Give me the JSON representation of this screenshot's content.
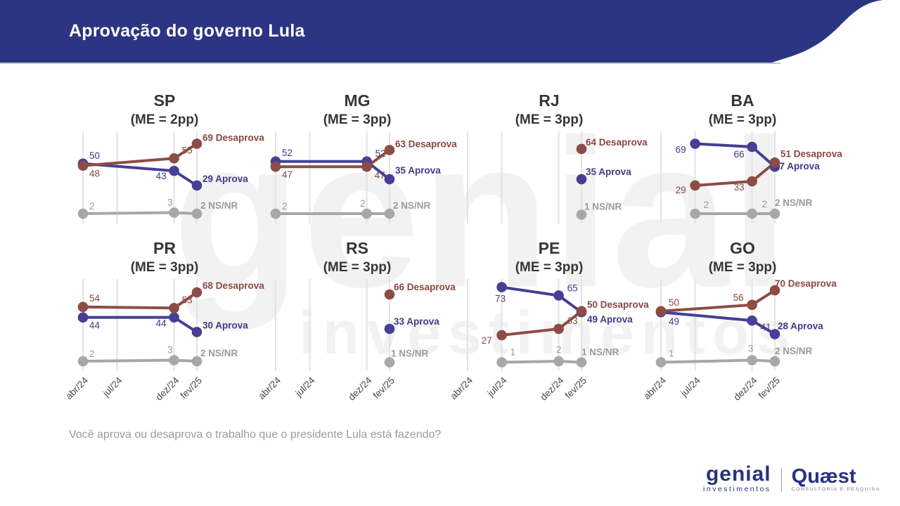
{
  "header": {
    "title": "Aprovação do governo Lula",
    "bg_color": "#2b3581"
  },
  "question": "Você aprova ou desaprova o trabalho que o presidente Lula está fazendo?",
  "watermark": {
    "line1": "genial",
    "line2": "investimentos"
  },
  "footer": {
    "genial": {
      "name": "genial",
      "sub": "investimentos"
    },
    "quaest": {
      "name": "Quæst",
      "sub": "CONSULTORIA E PESQUISA"
    }
  },
  "colors": {
    "aprova": "#463f95",
    "aprova_text": "#3d3a88",
    "desaprova": "#8d4c45",
    "desaprova_text": "#8a4740",
    "nsnr": "#a7a7a7",
    "nsnr_text": "#9a9a9a",
    "grid": "#e3e3e3",
    "tick": "#474747",
    "title": "#363636",
    "header_rule": "#c4c4c4"
  },
  "x_categories": [
    "abr/24",
    "jul/24",
    "dez/24",
    "fev/25"
  ],
  "chart_data": [
    {
      "state": "SP",
      "me": "(ME = 2pp)",
      "type": "line",
      "ylim": [
        0,
        80
      ],
      "series": [
        {
          "key": "nsnr",
          "name": "NS/NR",
          "points": [
            {
              "x": "abr/24",
              "v": 2,
              "dx": 9,
              "dy": -6,
              "anchor": "start",
              "end": false
            },
            {
              "x": "dez/24",
              "v": 3,
              "dx": -2,
              "dy": -10,
              "anchor": "end",
              "end": false
            },
            {
              "x": "fev/25",
              "v": 2,
              "dx": 5,
              "dy": -7,
              "anchor": "start",
              "end": true
            }
          ]
        },
        {
          "key": "aprova",
          "name": "Aprova",
          "points": [
            {
              "x": "abr/24",
              "v": 50,
              "dx": 9,
              "dy": -7,
              "anchor": "start",
              "end": false
            },
            {
              "x": "dez/24",
              "v": 43,
              "dx": -11,
              "dy": 12,
              "anchor": "end",
              "end": false
            },
            {
              "x": "fev/25",
              "v": 29,
              "dx": 8,
              "dy": -5,
              "anchor": "start",
              "end": true
            }
          ]
        },
        {
          "key": "desaprova",
          "name": "Desaprova",
          "points": [
            {
              "x": "abr/24",
              "v": 48,
              "dx": 9,
              "dy": 16,
              "anchor": "start",
              "end": false
            },
            {
              "x": "dez/24",
              "v": 55,
              "dx": 11,
              "dy": -7,
              "anchor": "start",
              "end": false
            },
            {
              "x": "fev/25",
              "v": 69,
              "dx": 8,
              "dy": -4,
              "anchor": "start",
              "end": true
            }
          ]
        }
      ]
    },
    {
      "state": "MG",
      "me": "(ME = 3pp)",
      "type": "line",
      "ylim": [
        0,
        80
      ],
      "series": [
        {
          "key": "nsnr",
          "name": "NS/NR",
          "points": [
            {
              "x": "abr/24",
              "v": 2,
              "dx": 9,
              "dy": -6,
              "anchor": "start",
              "end": false
            },
            {
              "x": "dez/24",
              "v": 2,
              "dx": -2,
              "dy": -10,
              "anchor": "end",
              "end": false
            },
            {
              "x": "fev/25",
              "v": 2,
              "dx": 5,
              "dy": -7,
              "anchor": "start",
              "end": true
            }
          ]
        },
        {
          "key": "aprova",
          "name": "Aprova",
          "points": [
            {
              "x": "abr/24",
              "v": 52,
              "dx": 9,
              "dy": -8,
              "anchor": "start",
              "end": false
            },
            {
              "x": "dez/24",
              "v": 52,
              "dx": 12,
              "dy": -7,
              "anchor": "start",
              "end": false
            },
            {
              "x": "fev/25",
              "v": 35,
              "dx": 8,
              "dy": -8,
              "anchor": "start",
              "end": true
            }
          ]
        },
        {
          "key": "desaprova",
          "name": "Desaprova",
          "points": [
            {
              "x": "abr/24",
              "v": 47,
              "dx": 9,
              "dy": 16,
              "anchor": "start",
              "end": false
            },
            {
              "x": "dez/24",
              "v": 47,
              "dx": 11,
              "dy": 17,
              "anchor": "start",
              "end": false
            },
            {
              "x": "fev/25",
              "v": 63,
              "dx": 8,
              "dy": -4,
              "anchor": "start",
              "end": true
            }
          ]
        }
      ]
    },
    {
      "state": "RJ",
      "me": "(ME = 3pp)",
      "type": "line",
      "ylim": [
        0,
        80
      ],
      "series": [
        {
          "key": "nsnr",
          "name": "NS/NR",
          "points": [
            {
              "x": "fev/25",
              "v": 1,
              "dx": 4,
              "dy": -7,
              "anchor": "start",
              "end": true
            }
          ]
        },
        {
          "key": "aprova",
          "name": "Aprova",
          "points": [
            {
              "x": "fev/25",
              "v": 35,
              "dx": 6,
              "dy": -6,
              "anchor": "start",
              "end": true
            }
          ]
        },
        {
          "key": "desaprova",
          "name": "Desaprova",
          "points": [
            {
              "x": "fev/25",
              "v": 64,
              "dx": 6,
              "dy": -5,
              "anchor": "start",
              "end": true
            }
          ]
        }
      ]
    },
    {
      "state": "BA",
      "me": "(ME = 3pp)",
      "type": "line",
      "ylim": [
        0,
        80
      ],
      "series": [
        {
          "key": "nsnr",
          "name": "NS/NR",
          "points": [
            {
              "x": "jul/24",
              "v": 2,
              "dx": 12,
              "dy": -8,
              "anchor": "start",
              "end": false
            },
            {
              "x": "dez/24",
              "v": 2,
              "dx": 14,
              "dy": -9,
              "anchor": "start",
              "end": false
            },
            {
              "x": "fev/25",
              "v": 2,
              "dx": 0,
              "dy": -11,
              "anchor": "start",
              "end": true
            }
          ]
        },
        {
          "key": "aprova",
          "name": "Aprova",
          "points": [
            {
              "x": "jul/24",
              "v": 69,
              "dx": -13,
              "dy": 13,
              "anchor": "end",
              "end": false
            },
            {
              "x": "dez/24",
              "v": 66,
              "dx": -11,
              "dy": 15,
              "anchor": "end",
              "end": false
            },
            {
              "x": "fev/25",
              "v": 47,
              "dx": -1,
              "dy": 4,
              "anchor": "start",
              "end": true
            }
          ]
        },
        {
          "key": "desaprova",
          "name": "Desaprova",
          "points": [
            {
              "x": "jul/24",
              "v": 29,
              "dx": -13,
              "dy": 11,
              "anchor": "end",
              "end": false
            },
            {
              "x": "dez/24",
              "v": 33,
              "dx": -11,
              "dy": 13,
              "anchor": "end",
              "end": false
            },
            {
              "x": "fev/25",
              "v": 51,
              "dx": 8,
              "dy": -8,
              "anchor": "start",
              "end": true
            }
          ]
        }
      ]
    },
    {
      "state": "PR",
      "me": "(ME = 3pp)",
      "type": "line",
      "ylim": [
        0,
        80
      ],
      "series": [
        {
          "key": "nsnr",
          "name": "NS/NR",
          "points": [
            {
              "x": "abr/24",
              "v": 2,
              "dx": 9,
              "dy": -6,
              "anchor": "start",
              "end": false
            },
            {
              "x": "dez/24",
              "v": 3,
              "dx": -2,
              "dy": -10,
              "anchor": "end",
              "end": false
            },
            {
              "x": "fev/25",
              "v": 2,
              "dx": 5,
              "dy": -7,
              "anchor": "start",
              "end": true
            }
          ]
        },
        {
          "key": "aprova",
          "name": "Aprova",
          "points": [
            {
              "x": "abr/24",
              "v": 44,
              "dx": 9,
              "dy": 16,
              "anchor": "start",
              "end": false
            },
            {
              "x": "dez/24",
              "v": 44,
              "dx": -11,
              "dy": 13,
              "anchor": "end",
              "end": false
            },
            {
              "x": "fev/25",
              "v": 30,
              "dx": 8,
              "dy": -5,
              "anchor": "start",
              "end": true
            }
          ]
        },
        {
          "key": "desaprova",
          "name": "Desaprova",
          "points": [
            {
              "x": "abr/24",
              "v": 54,
              "dx": 9,
              "dy": -8,
              "anchor": "start",
              "end": false
            },
            {
              "x": "dez/24",
              "v": 53,
              "dx": 11,
              "dy": -7,
              "anchor": "start",
              "end": false
            },
            {
              "x": "fev/25",
              "v": 68,
              "dx": 8,
              "dy": -5,
              "anchor": "start",
              "end": true
            }
          ]
        }
      ]
    },
    {
      "state": "RS",
      "me": "(ME = 3pp)",
      "type": "line",
      "ylim": [
        0,
        80
      ],
      "series": [
        {
          "key": "nsnr",
          "name": "NS/NR",
          "points": [
            {
              "x": "fev/25",
              "v": 1,
              "dx": 2,
              "dy": -8,
              "anchor": "start",
              "end": true
            }
          ]
        },
        {
          "key": "aprova",
          "name": "Aprova",
          "points": [
            {
              "x": "fev/25",
              "v": 33,
              "dx": 6,
              "dy": -6,
              "anchor": "start",
              "end": true
            }
          ]
        },
        {
          "key": "desaprova",
          "name": "Desaprova",
          "points": [
            {
              "x": "fev/25",
              "v": 66,
              "dx": 6,
              "dy": -6,
              "anchor": "start",
              "end": true
            }
          ]
        }
      ]
    },
    {
      "state": "PE",
      "me": "(ME = 3pp)",
      "type": "line",
      "ylim": [
        0,
        80
      ],
      "series": [
        {
          "key": "nsnr",
          "name": "NS/NR",
          "points": [
            {
              "x": "jul/24",
              "v": 1,
              "dx": 12,
              "dy": -10,
              "anchor": "start",
              "end": false
            },
            {
              "x": "dez/24",
              "v": 2,
              "dx": 0,
              "dy": -12,
              "anchor": "middle",
              "end": false
            },
            {
              "x": "fev/25",
              "v": 1,
              "dx": 0,
              "dy": -10,
              "anchor": "start",
              "end": true
            }
          ]
        },
        {
          "key": "aprova",
          "name": "Aprova",
          "points": [
            {
              "x": "jul/24",
              "v": 73,
              "dx": -2,
              "dy": 21,
              "anchor": "middle",
              "end": false
            },
            {
              "x": "dez/24",
              "v": 65,
              "dx": 12,
              "dy": -6,
              "anchor": "start",
              "end": false
            },
            {
              "x": "fev/25",
              "v": 49,
              "dx": 8,
              "dy": 15,
              "anchor": "start",
              "end": true
            }
          ]
        },
        {
          "key": "desaprova",
          "name": "Desaprova",
          "points": [
            {
              "x": "jul/24",
              "v": 27,
              "dx": -14,
              "dy": 12,
              "anchor": "end",
              "end": false
            },
            {
              "x": "dez/24",
              "v": 33,
              "dx": 12,
              "dy": -7,
              "anchor": "start",
              "end": false
            },
            {
              "x": "fev/25",
              "v": 50,
              "dx": 8,
              "dy": -5,
              "anchor": "start",
              "end": true
            }
          ]
        }
      ]
    },
    {
      "state": "GO",
      "me": "(ME = 3pp)",
      "type": "line",
      "ylim": [
        0,
        80
      ],
      "series": [
        {
          "key": "nsnr",
          "name": "NS/NR",
          "points": [
            {
              "x": "abr/24",
              "v": 1,
              "dx": 11,
              "dy": -8,
              "anchor": "start",
              "end": false
            },
            {
              "x": "dez/24",
              "v": 3,
              "dx": -2,
              "dy": -12,
              "anchor": "middle",
              "end": false
            },
            {
              "x": "fev/25",
              "v": 2,
              "dx": 0,
              "dy": -10,
              "anchor": "start",
              "end": true
            }
          ]
        },
        {
          "key": "aprova",
          "name": "Aprova",
          "points": [
            {
              "x": "abr/24",
              "v": 49,
              "dx": 11,
              "dy": 18,
              "anchor": "start",
              "end": false
            },
            {
              "x": "dez/24",
              "v": 41,
              "dx": 12,
              "dy": 14,
              "anchor": "start",
              "end": false
            },
            {
              "x": "fev/25",
              "v": 28,
              "dx": 4,
              "dy": -7,
              "anchor": "start",
              "end": true
            }
          ]
        },
        {
          "key": "desaprova",
          "name": "Desaprova",
          "points": [
            {
              "x": "abr/24",
              "v": 50,
              "dx": 11,
              "dy": -8,
              "anchor": "start",
              "end": false
            },
            {
              "x": "dez/24",
              "v": 56,
              "dx": -12,
              "dy": -6,
              "anchor": "end",
              "end": false
            },
            {
              "x": "fev/25",
              "v": 70,
              "dx": 0,
              "dy": -5,
              "anchor": "start",
              "end": true
            }
          ]
        }
      ]
    }
  ]
}
